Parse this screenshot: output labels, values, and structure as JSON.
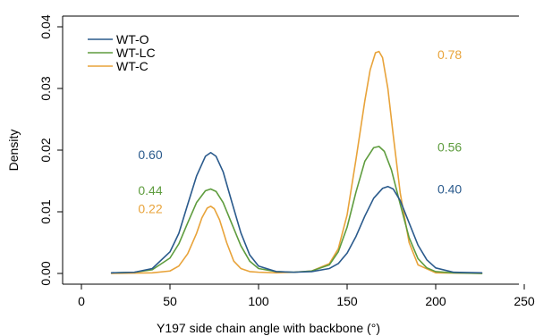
{
  "chart_data": {
    "type": "line",
    "title": "",
    "xlabel": "Y197 side chain angle with backbone (°)",
    "ylabel": "Density",
    "xlim": [
      0,
      250
    ],
    "ylim": [
      0,
      0.04
    ],
    "xticks": [
      "0",
      "50",
      "100",
      "150",
      "200",
      "250"
    ],
    "yticks": [
      "0.00",
      "0.01",
      "0.02",
      "0.03",
      "0.04"
    ],
    "legend_position": "top-left",
    "grid": false,
    "series": [
      {
        "name": "WT-O",
        "color": "#2a5a8c",
        "x": [
          17,
          30,
          40,
          50,
          55,
          60,
          65,
          70,
          73,
          76,
          80,
          85,
          90,
          95,
          100,
          110,
          120,
          130,
          140,
          145,
          150,
          155,
          160,
          165,
          170,
          173,
          176,
          180,
          185,
          190,
          195,
          200,
          210,
          226
        ],
        "y": [
          0.0001,
          0.0002,
          0.0008,
          0.0035,
          0.0065,
          0.0112,
          0.0158,
          0.019,
          0.0196,
          0.019,
          0.0165,
          0.0115,
          0.0066,
          0.003,
          0.0012,
          0.0003,
          0.0002,
          0.0003,
          0.0008,
          0.0016,
          0.0033,
          0.006,
          0.0093,
          0.0122,
          0.0138,
          0.0141,
          0.0137,
          0.0118,
          0.0082,
          0.0046,
          0.0022,
          0.0009,
          0.0002,
          0.0001
        ]
      },
      {
        "name": "WT-LC",
        "color": "#5e9c3e",
        "x": [
          17,
          30,
          40,
          50,
          55,
          60,
          65,
          70,
          73,
          76,
          80,
          85,
          90,
          95,
          100,
          110,
          120,
          130,
          140,
          145,
          150,
          155,
          160,
          165,
          168,
          171,
          175,
          180,
          185,
          190,
          195,
          200,
          210,
          226
        ],
        "y": [
          0.0001,
          0.0002,
          0.0006,
          0.0025,
          0.0048,
          0.0082,
          0.0115,
          0.0134,
          0.0137,
          0.0133,
          0.0115,
          0.008,
          0.0045,
          0.002,
          0.0008,
          0.0003,
          0.0002,
          0.0004,
          0.0014,
          0.0035,
          0.0075,
          0.0132,
          0.0182,
          0.0204,
          0.0206,
          0.0198,
          0.0168,
          0.0112,
          0.0058,
          0.0024,
          0.0009,
          0.0003,
          0.0001,
          0.0
        ]
      },
      {
        "name": "WT-C",
        "color": "#e8a33a",
        "x": [
          17,
          40,
          50,
          55,
          60,
          65,
          68,
          71,
          73,
          75,
          78,
          82,
          86,
          90,
          95,
          100,
          110,
          120,
          130,
          140,
          145,
          150,
          155,
          160,
          163,
          166,
          168,
          170,
          173,
          176,
          180,
          185,
          190,
          200,
          226
        ],
        "y": [
          0.0,
          0.0001,
          0.0004,
          0.0012,
          0.0032,
          0.0065,
          0.009,
          0.0106,
          0.0109,
          0.0105,
          0.0087,
          0.005,
          0.002,
          0.0008,
          0.0003,
          0.0002,
          0.0001,
          0.0002,
          0.0004,
          0.0016,
          0.004,
          0.0095,
          0.0185,
          0.028,
          0.033,
          0.0358,
          0.036,
          0.035,
          0.03,
          0.0225,
          0.013,
          0.005,
          0.0014,
          0.0001,
          0.0
        ]
      }
    ],
    "annotations": [
      {
        "text": "0.60",
        "x": 32,
        "y": 0.0193,
        "color": "#2a5a8c"
      },
      {
        "text": "0.44",
        "x": 32,
        "y": 0.0135,
        "color": "#5e9c3e"
      },
      {
        "text": "0.22",
        "x": 32,
        "y": 0.0105,
        "color": "#e8a33a"
      },
      {
        "text": "0.78",
        "x": 201,
        "y": 0.0355,
        "color": "#e8a33a"
      },
      {
        "text": "0.56",
        "x": 201,
        "y": 0.0205,
        "color": "#5e9c3e"
      },
      {
        "text": "0.40",
        "x": 201,
        "y": 0.0137,
        "color": "#2a5a8c"
      }
    ]
  }
}
